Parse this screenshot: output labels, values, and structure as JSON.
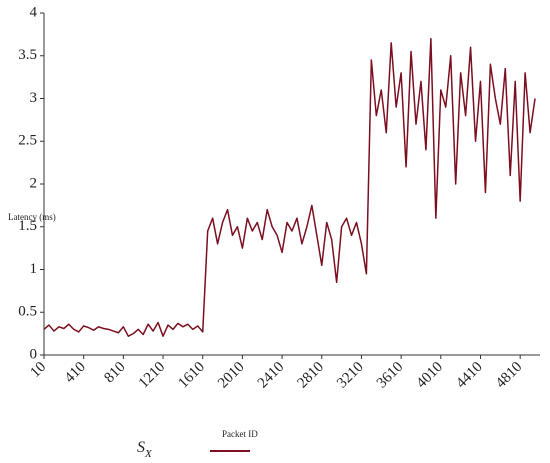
{
  "chart_data": {
    "type": "line",
    "y_label": "Latency (ms)",
    "annotation": {
      "text": "S",
      "subscript": "X"
    },
    "x": [
      10,
      60,
      110,
      160,
      210,
      260,
      310,
      360,
      410,
      460,
      510,
      560,
      610,
      660,
      710,
      760,
      810,
      860,
      910,
      960,
      1010,
      1060,
      1110,
      1160,
      1210,
      1260,
      1310,
      1360,
      1410,
      1460,
      1510,
      1560,
      1610,
      1660,
      1710,
      1760,
      1810,
      1860,
      1910,
      1960,
      2010,
      2060,
      2110,
      2160,
      2210,
      2260,
      2310,
      2360,
      2410,
      2460,
      2510,
      2560,
      2610,
      2660,
      2710,
      2760,
      2810,
      2860,
      2910,
      2960,
      3010,
      3060,
      3110,
      3160,
      3210,
      3260,
      3310,
      3360,
      3410,
      3460,
      3510,
      3560,
      3610,
      3660,
      3710,
      3760,
      3810,
      3860,
      3910,
      3960,
      4010,
      4060,
      4110,
      4160,
      4210,
      4260,
      4310,
      4360,
      4410,
      4460,
      4510,
      4560,
      4610,
      4660,
      4710,
      4760,
      4810,
      4860,
      4910,
      4960
    ],
    "series": [
      {
        "name": "Packet ID",
        "color": "#7b0e1f",
        "values": [
          0.3,
          0.35,
          0.28,
          0.33,
          0.31,
          0.36,
          0.3,
          0.27,
          0.34,
          0.32,
          0.29,
          0.33,
          0.31,
          0.3,
          0.28,
          0.26,
          0.33,
          0.22,
          0.25,
          0.3,
          0.24,
          0.36,
          0.28,
          0.38,
          0.22,
          0.35,
          0.3,
          0.37,
          0.33,
          0.36,
          0.3,
          0.34,
          0.27,
          1.45,
          1.6,
          1.3,
          1.55,
          1.7,
          1.4,
          1.5,
          1.25,
          1.6,
          1.45,
          1.55,
          1.35,
          1.7,
          1.5,
          1.4,
          1.2,
          1.55,
          1.45,
          1.6,
          1.3,
          1.5,
          1.75,
          1.4,
          1.05,
          1.55,
          1.35,
          0.85,
          1.5,
          1.6,
          1.4,
          1.55,
          1.3,
          0.95,
          3.45,
          2.8,
          3.1,
          2.6,
          3.65,
          2.9,
          3.3,
          2.2,
          3.55,
          2.7,
          3.2,
          2.4,
          3.7,
          1.6,
          3.1,
          2.9,
          3.5,
          2.0,
          3.3,
          2.8,
          3.6,
          2.5,
          3.2,
          1.9,
          3.4,
          3.0,
          2.7,
          3.35,
          2.1,
          3.2,
          1.8,
          3.3,
          2.6,
          3.0
        ]
      }
    ],
    "xlim": [
      10,
      5010
    ],
    "xticks": [
      10,
      410,
      810,
      1210,
      1610,
      2010,
      2410,
      2810,
      3210,
      3610,
      4010,
      4410,
      4810
    ],
    "ylim": [
      0,
      4
    ],
    "yticks": [
      0,
      0.5,
      1,
      1.5,
      2,
      2.5,
      3,
      3.5,
      4
    ],
    "grid": false
  }
}
